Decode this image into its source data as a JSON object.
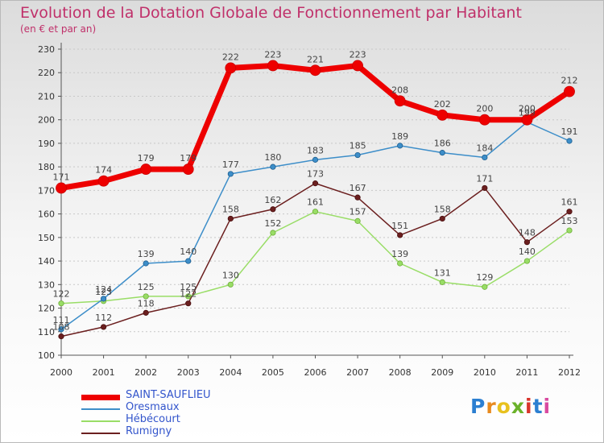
{
  "title": "Evolution de la Dotation Globale de Fonctionnement par Habitant",
  "subtitle": "(en € et par an)",
  "logo": {
    "text": "Proxiti",
    "colors": [
      "#2c7fd1",
      "#e88a1e",
      "#e8c11e",
      "#6bb22a",
      "#d9342b",
      "#2c7fd1",
      "#d94aa0"
    ]
  },
  "chart_data": {
    "type": "line",
    "x": [
      "2000",
      "2001",
      "2002",
      "2003",
      "2004",
      "2005",
      "2006",
      "2007",
      "2008",
      "2009",
      "2010",
      "2011",
      "2012"
    ],
    "ylim": [
      100,
      230
    ],
    "yticks": [
      100,
      110,
      120,
      130,
      140,
      150,
      160,
      170,
      180,
      190,
      200,
      210,
      220,
      230
    ],
    "grid": "horizontal dotted",
    "legend_position": "bottom-left",
    "series": [
      {
        "name": "SAINT-SAUFLIEU",
        "color": "#ee0000",
        "values": [
          171,
          174,
          179,
          179,
          222,
          223,
          221,
          223,
          208,
          202,
          200,
          200,
          212
        ]
      },
      {
        "name": "Oresmaux",
        "color": "#3d8ec9",
        "values": [
          111,
          124,
          139,
          140,
          177,
          180,
          183,
          185,
          189,
          186,
          184,
          199,
          191
        ]
      },
      {
        "name": "Hébécourt",
        "color": "#99dd66",
        "values": [
          122,
          123,
          125,
          125,
          130,
          152,
          161,
          157,
          139,
          131,
          129,
          140,
          153
        ]
      },
      {
        "name": "Rumigny",
        "color": "#6b1f1f",
        "values": [
          108,
          112,
          118,
          122,
          158,
          162,
          173,
          167,
          151,
          158,
          171,
          148,
          161
        ]
      }
    ]
  }
}
